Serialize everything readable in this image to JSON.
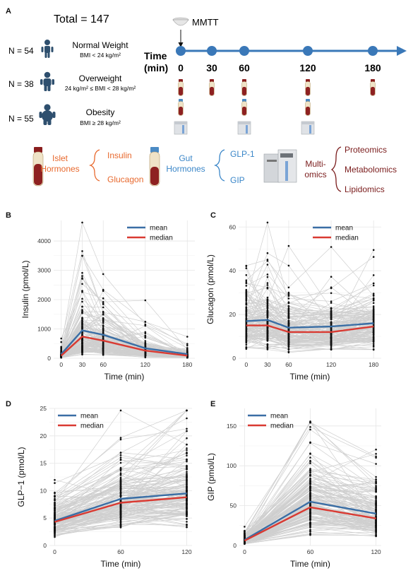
{
  "panel_a": {
    "label": "A",
    "total": "Total = 147",
    "groups": [
      {
        "n": "N = 54",
        "name": "Normal Weight",
        "criteria": "BMI < 24 kg/m²"
      },
      {
        "n": "N = 38",
        "name": "Overweight",
        "criteria": "24 kg/m² ≤ BMI < 28 kg/m²"
      },
      {
        "n": "N = 55",
        "name": "Obesity",
        "criteria": "BMI ≥ 28 kg/m²"
      }
    ],
    "mmtt": "MMTT",
    "time_label": "Time",
    "time_unit": "(min)",
    "timepoints": [
      "0",
      "30",
      "60",
      "120",
      "180"
    ],
    "islet_hormones_1": "Islet",
    "islet_hormones_2": "Hormones",
    "insulin": "Insulin",
    "glucagon": "Glucagon",
    "gut_hormones_1": "Gut",
    "gut_hormones_2": "Hormones",
    "glp1": "GLP-1",
    "gip": "GIP",
    "multiomics_1": "Multi-",
    "multiomics_2": "omics",
    "omics": [
      "Proteomics",
      "Metabolomics",
      "Lipidomics"
    ],
    "colors": {
      "islet": "#e8692e",
      "gut": "#3a86c8",
      "omics": "#7a1c1c",
      "timeline": "#3a78b8"
    }
  },
  "legend": {
    "mean": "mean",
    "median": "median",
    "mean_color": "#3a6ea5",
    "median_color": "#d93a32"
  },
  "chart_data": [
    {
      "panel": "B",
      "type": "line",
      "xlabel": "Time (min)",
      "ylabel": "Insulin (pmol/L)",
      "x": [
        0,
        30,
        60,
        120,
        180
      ],
      "ylim": [
        0,
        4700
      ],
      "yticks": [
        0,
        1000,
        2000,
        3000,
        4000
      ],
      "series": [
        {
          "name": "mean",
          "values": [
            140,
            950,
            800,
            340,
            140
          ]
        },
        {
          "name": "median",
          "values": [
            90,
            740,
            600,
            260,
            90
          ]
        }
      ],
      "n_subjects": 147
    },
    {
      "panel": "C",
      "type": "line",
      "xlabel": "Time (min)",
      "ylabel": "Glucagon (pmol/L)",
      "x": [
        0,
        30,
        60,
        120,
        180
      ],
      "ylim": [
        0,
        63
      ],
      "yticks": [
        0,
        20,
        40,
        60
      ],
      "series": [
        {
          "name": "mean",
          "values": [
            17,
            17.5,
            14,
            14.5,
            16
          ]
        },
        {
          "name": "median",
          "values": [
            15,
            15,
            12,
            12,
            14.5
          ]
        }
      ],
      "n_subjects": 147
    },
    {
      "panel": "D",
      "type": "line",
      "xlabel": "Time (min)",
      "ylabel": "GLP−1 (pmol/L)",
      "x": [
        0,
        60,
        120
      ],
      "ylim": [
        0,
        25
      ],
      "yticks": [
        0,
        5,
        10,
        15,
        20,
        25
      ],
      "series": [
        {
          "name": "mean",
          "values": [
            4.5,
            8.5,
            9.5
          ]
        },
        {
          "name": "median",
          "values": [
            4.3,
            7.8,
            8.8
          ]
        }
      ],
      "n_subjects": 147
    },
    {
      "panel": "E",
      "type": "line",
      "xlabel": "Time (min)",
      "ylabel": "GIP (pmol/L)",
      "x": [
        0,
        60,
        120
      ],
      "ylim": [
        0,
        172
      ],
      "yticks": [
        0,
        50,
        100,
        150
      ],
      "series": [
        {
          "name": "mean",
          "values": [
            7,
            55,
            40
          ]
        },
        {
          "name": "median",
          "values": [
            6,
            48,
            34
          ]
        }
      ],
      "n_subjects": 147
    }
  ]
}
